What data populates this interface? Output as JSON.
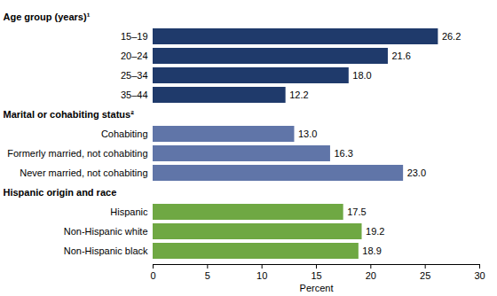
{
  "chart_data": {
    "type": "bar",
    "orientation": "horizontal",
    "data_labels": true,
    "grid": false,
    "xlabel": "Percent",
    "xlim": [
      0,
      30
    ],
    "xticks": [
      0,
      5,
      10,
      15,
      20,
      25,
      30
    ],
    "groups": [
      {
        "name": "Age group (years)¹",
        "color": "#1f3a6b",
        "categories": [
          "15–19",
          "20–24",
          "25–34",
          "35–44"
        ],
        "values": [
          26.2,
          21.6,
          18.0,
          12.2
        ],
        "value_labels": [
          "26.2",
          "21.6",
          "18.0",
          "12.2"
        ]
      },
      {
        "name": "Marital or cohabiting status²",
        "color": "#6075a8",
        "categories": [
          "Cohabiting",
          "Formerly married, not cohabiting",
          "Never married, not cohabiting"
        ],
        "values": [
          13.0,
          16.3,
          23.0
        ],
        "value_labels": [
          "13.0",
          "16.3",
          "23.0"
        ]
      },
      {
        "name": "Hispanic origin and race",
        "color": "#6fa843",
        "categories": [
          "Hispanic",
          "Non-Hispanic white",
          "Non-Hispanic black"
        ],
        "values": [
          17.5,
          19.2,
          18.9
        ],
        "value_labels": [
          "17.5",
          "19.2",
          "18.9"
        ]
      }
    ]
  }
}
